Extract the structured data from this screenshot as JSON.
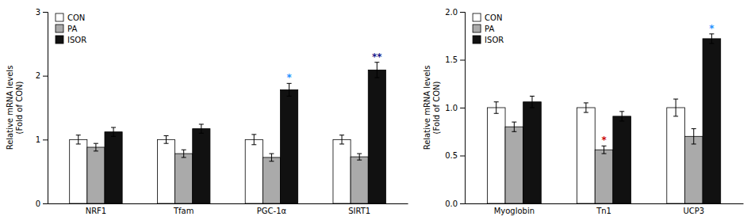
{
  "chart_data": [
    {
      "type": "bar",
      "categories": [
        "NRF1",
        "Tfam",
        "PGC-1α",
        "SIRT1"
      ],
      "series": [
        {
          "name": "CON",
          "color": "#FFFFFF",
          "values": [
            1.0,
            1.0,
            1.0,
            1.0
          ],
          "errors": [
            0.07,
            0.06,
            0.08,
            0.07
          ]
        },
        {
          "name": "PA",
          "color": "#AAAAAA",
          "values": [
            0.88,
            0.78,
            0.72,
            0.73
          ],
          "errors": [
            0.06,
            0.06,
            0.06,
            0.05
          ]
        },
        {
          "name": "ISOR",
          "color": "#111111",
          "values": [
            1.12,
            1.17,
            1.78,
            2.09
          ],
          "errors": [
            0.07,
            0.07,
            0.1,
            0.12
          ]
        }
      ],
      "ylim": [
        0,
        3
      ],
      "yticks": [
        0,
        1,
        2,
        3
      ],
      "ylabel": "Relative mRNA levels\n(Fold of CON)",
      "legend": "upper left",
      "annotations": [
        {
          "text": "*",
          "category": "PGC-1α",
          "series": "ISOR",
          "color": "#1E90FF"
        },
        {
          "text": "**",
          "category": "SIRT1",
          "series": "ISOR",
          "color": "#1a1a8c"
        }
      ]
    },
    {
      "type": "bar",
      "categories": [
        "Myoglobin",
        "Tn1",
        "UCP3"
      ],
      "series": [
        {
          "name": "CON",
          "color": "#FFFFFF",
          "values": [
            1.0,
            1.0,
            1.0
          ],
          "errors": [
            0.06,
            0.05,
            0.09
          ]
        },
        {
          "name": "PA",
          "color": "#AAAAAA",
          "values": [
            0.8,
            0.56,
            0.7
          ],
          "errors": [
            0.05,
            0.04,
            0.08
          ]
        },
        {
          "name": "ISOR",
          "color": "#111111",
          "values": [
            1.06,
            0.91,
            1.72
          ],
          "errors": [
            0.06,
            0.05,
            0.05
          ]
        }
      ],
      "ylim": [
        0,
        2
      ],
      "yticks": [
        {
          "value": 0,
          "label": "0.0"
        },
        0.5,
        {
          "value": 1,
          "label": "1.0"
        },
        1.5,
        {
          "value": 2,
          "label": "2.0"
        }
      ],
      "ylabel": "Relative mRNA levels\n(Fold of CON)",
      "legend": "upper left",
      "annotations": [
        {
          "text": "*",
          "category": "Tn1",
          "series": "PA",
          "color": "#CC0000"
        },
        {
          "text": "*",
          "category": "UCP3",
          "series": "ISOR",
          "color": "#1E90FF"
        }
      ]
    }
  ]
}
